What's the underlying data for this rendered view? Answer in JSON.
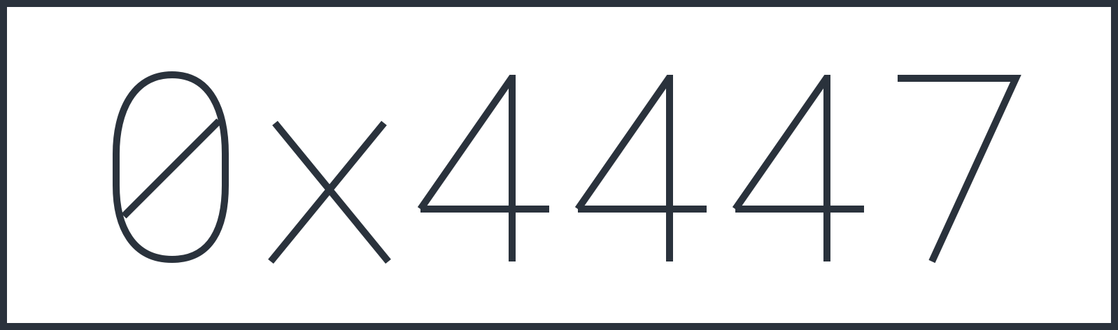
{
  "display": {
    "text": "0x4447",
    "color": "#2a323c",
    "background": "#ffffff"
  }
}
